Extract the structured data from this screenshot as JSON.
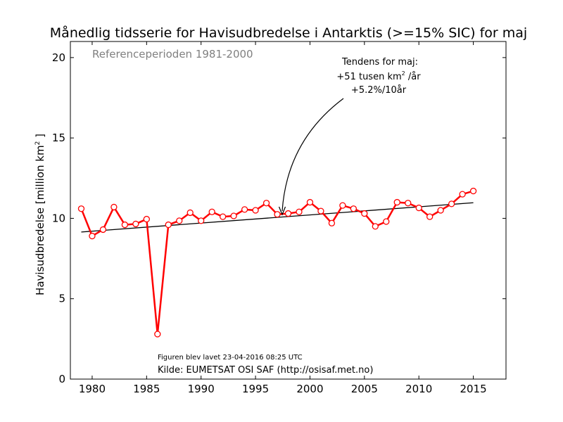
{
  "chart_data": {
    "type": "line",
    "title": "Månedlig tidsserie for Havisudbredelse i Antarktis (>=15% SIC) for maj",
    "ylabel": "Havisudbredelse [million km",
    "ylabel_sup": "2",
    "ylabel_end": " ]",
    "reference_text": "Referenceperioden 1981-2000",
    "trend_text": {
      "line1": "Tendens for maj:",
      "line2": "+51 tusen km",
      "line2_sup": "2",
      "line2_end": " /år",
      "line3": "+5.2%/10år"
    },
    "created_text": "Figuren blev lavet 23-04-2016 08:25 UTC",
    "source_text": "Kilde: EUMETSAT OSI SAF (http://osisaf.met.no)",
    "xlim": [
      1978,
      2018
    ],
    "ylim": [
      0,
      21
    ],
    "xticks": [
      1980,
      1985,
      1990,
      1995,
      2000,
      2005,
      2010,
      2015
    ],
    "yticks": [
      0,
      5,
      10,
      15,
      20
    ],
    "grid": false,
    "series": [
      {
        "color": "#ff0000",
        "x": [
          1979,
          1980,
          1981,
          1982,
          1983,
          1984,
          1985,
          1986,
          1987,
          1988,
          1989,
          1990,
          1991,
          1992,
          1993,
          1994,
          1995,
          1996,
          1997,
          1998,
          1999,
          2000,
          2001,
          2002,
          2003,
          2004,
          2005,
          2006,
          2007,
          2008,
          2009,
          2010,
          2011,
          2012,
          2013,
          2014,
          2015
        ],
        "y": [
          10.6,
          8.9,
          9.3,
          10.7,
          9.6,
          9.65,
          9.95,
          2.8,
          9.6,
          9.85,
          10.35,
          9.85,
          10.4,
          10.1,
          10.15,
          10.55,
          10.5,
          10.95,
          10.25,
          10.3,
          10.4,
          11.0,
          10.45,
          9.7,
          10.8,
          10.6,
          10.3,
          9.5,
          9.8,
          11.0,
          10.95,
          10.65,
          10.1,
          10.5,
          10.9,
          11.5,
          11.7
        ]
      }
    ],
    "trend_line": {
      "color": "#000000",
      "x": [
        1979,
        2015
      ],
      "y": [
        9.15,
        10.97
      ]
    },
    "annotation_target": {
      "x": 1997,
      "y": 10.25
    }
  }
}
